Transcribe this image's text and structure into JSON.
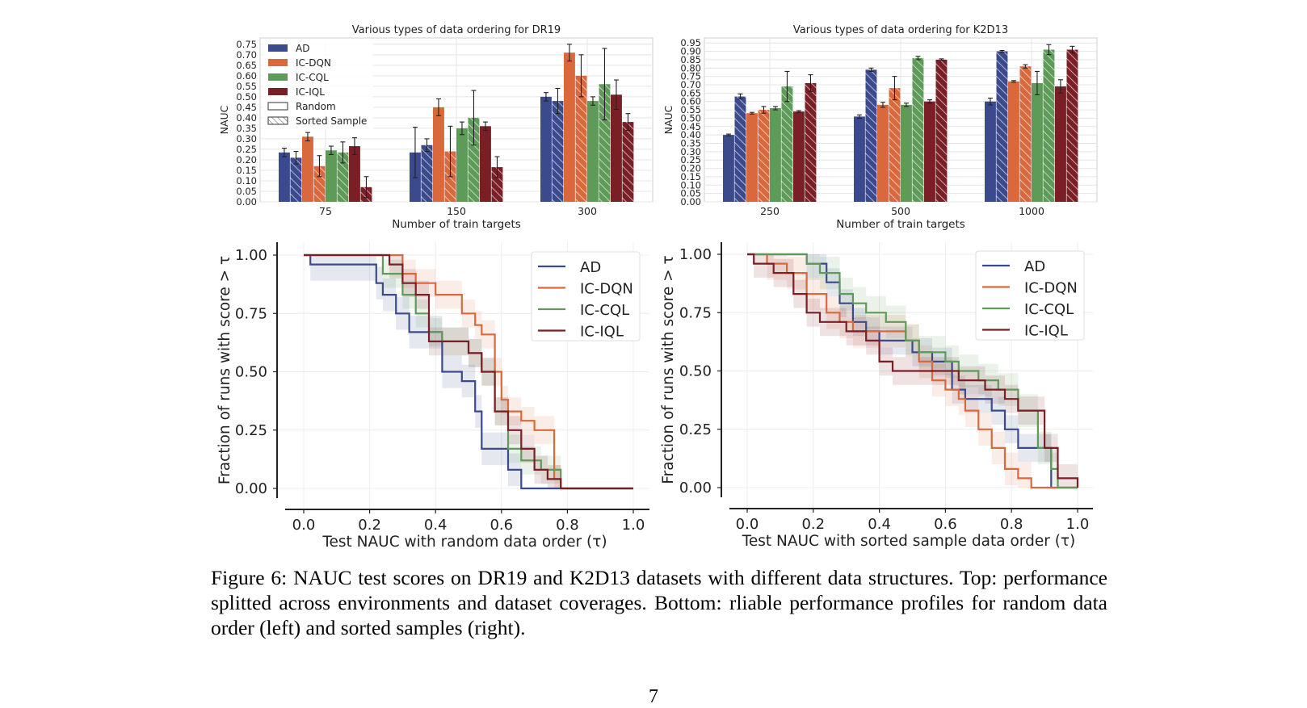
{
  "colors": {
    "AD": "#3b4a8c",
    "IC-DQN": "#d9693c",
    "IC-CQL": "#5e9a58",
    "IC-IQL": "#7a1f26",
    "grid": "#e4e4e4"
  },
  "chart_data": [
    {
      "id": "top-left",
      "type": "bar",
      "title": "Various types of data ordering for DR19",
      "xlabel": "Number of train targets",
      "ylabel": "NAUC",
      "categories": [
        "75",
        "150",
        "300"
      ],
      "ylim": [
        0,
        0.78
      ],
      "yticks": [
        "0.00",
        "0.05",
        "0.10",
        "0.15",
        "0.20",
        "0.25",
        "0.30",
        "0.35",
        "0.40",
        "0.45",
        "0.50",
        "0.55",
        "0.60",
        "0.65",
        "0.70",
        "0.75"
      ],
      "legend": [
        "AD",
        "IC-DQN",
        "IC-CQL",
        "IC-IQL",
        "Random",
        "Sorted Sample"
      ],
      "legend_position": "top-left",
      "series": [
        {
          "name": "AD",
          "order": "Random",
          "values": [
            0.235,
            0.235,
            0.5
          ],
          "err": [
            0.02,
            0.12,
            0.02
          ]
        },
        {
          "name": "AD",
          "order": "Sorted Sample",
          "values": [
            0.21,
            0.27,
            0.48
          ],
          "err": [
            0.03,
            0.03,
            0.06
          ]
        },
        {
          "name": "IC-DQN",
          "order": "Random",
          "values": [
            0.31,
            0.45,
            0.71
          ],
          "err": [
            0.02,
            0.04,
            0.04
          ]
        },
        {
          "name": "IC-DQN",
          "order": "Sorted Sample",
          "values": [
            0.17,
            0.24,
            0.6
          ],
          "err": [
            0.05,
            0.12,
            0.1
          ]
        },
        {
          "name": "IC-CQL",
          "order": "Random",
          "values": [
            0.245,
            0.35,
            0.48
          ],
          "err": [
            0.02,
            0.03,
            0.02
          ]
        },
        {
          "name": "IC-CQL",
          "order": "Sorted Sample",
          "values": [
            0.235,
            0.4,
            0.56
          ],
          "err": [
            0.05,
            0.13,
            0.17
          ]
        },
        {
          "name": "IC-IQL",
          "order": "Random",
          "values": [
            0.265,
            0.36,
            0.51
          ],
          "err": [
            0.04,
            0.02,
            0.07
          ]
        },
        {
          "name": "IC-IQL",
          "order": "Sorted Sample",
          "values": [
            0.07,
            0.165,
            0.38
          ],
          "err": [
            0.05,
            0.05,
            0.04
          ]
        }
      ]
    },
    {
      "id": "top-right",
      "type": "bar",
      "title": "Various types of data ordering for K2D13",
      "xlabel": "Number of train targets",
      "ylabel": "NAUC",
      "categories": [
        "250",
        "500",
        "1000"
      ],
      "ylim": [
        0,
        0.98
      ],
      "yticks": [
        "0.00",
        "0.05",
        "0.10",
        "0.15",
        "0.20",
        "0.25",
        "0.30",
        "0.35",
        "0.40",
        "0.45",
        "0.50",
        "0.55",
        "0.60",
        "0.65",
        "0.70",
        "0.75",
        "0.80",
        "0.85",
        "0.90",
        "0.95"
      ],
      "series": [
        {
          "name": "AD",
          "order": "Random",
          "values": [
            0.4,
            0.51,
            0.6
          ],
          "err": [
            0.005,
            0.01,
            0.02
          ]
        },
        {
          "name": "AD",
          "order": "Sorted Sample",
          "values": [
            0.63,
            0.79,
            0.9
          ],
          "err": [
            0.015,
            0.01,
            0.005
          ]
        },
        {
          "name": "IC-DQN",
          "order": "Random",
          "values": [
            0.53,
            0.58,
            0.72
          ],
          "err": [
            0.005,
            0.015,
            0.005
          ]
        },
        {
          "name": "IC-DQN",
          "order": "Sorted Sample",
          "values": [
            0.55,
            0.68,
            0.81
          ],
          "err": [
            0.02,
            0.07,
            0.01
          ]
        },
        {
          "name": "IC-CQL",
          "order": "Random",
          "values": [
            0.56,
            0.58,
            0.71
          ],
          "err": [
            0.01,
            0.01,
            0.07
          ]
        },
        {
          "name": "IC-CQL",
          "order": "Sorted Sample",
          "values": [
            0.69,
            0.86,
            0.91
          ],
          "err": [
            0.09,
            0.01,
            0.03
          ]
        },
        {
          "name": "IC-IQL",
          "order": "Random",
          "values": [
            0.54,
            0.6,
            0.69
          ],
          "err": [
            0.005,
            0.01,
            0.04
          ]
        },
        {
          "name": "IC-IQL",
          "order": "Sorted Sample",
          "values": [
            0.71,
            0.85,
            0.91
          ],
          "err": [
            0.05,
            0.005,
            0.02
          ]
        }
      ]
    },
    {
      "id": "bottom-left",
      "type": "line",
      "xlabel": "Test NAUC with random data order (τ)",
      "ylabel": "Fraction of runs with score > τ",
      "xlim": [
        0,
        1
      ],
      "ylim": [
        0,
        1
      ],
      "xticks": [
        "0.0",
        "0.2",
        "0.4",
        "0.6",
        "0.8",
        "1.0"
      ],
      "yticks": [
        "0.00",
        "0.25",
        "0.50",
        "0.75",
        "1.00"
      ],
      "legend": [
        "AD",
        "IC-DQN",
        "IC-CQL",
        "IC-IQL"
      ],
      "legend_position": "top-right",
      "series": [
        {
          "name": "AD",
          "x": [
            0.0,
            0.02,
            0.2,
            0.22,
            0.24,
            0.28,
            0.32,
            0.4,
            0.42,
            0.46,
            0.48,
            0.52,
            0.54,
            0.58,
            0.62,
            0.66,
            0.7,
            1.0
          ],
          "y": [
            1.0,
            0.96,
            0.96,
            0.88,
            0.83,
            0.75,
            0.67,
            0.67,
            0.5,
            0.5,
            0.46,
            0.33,
            0.17,
            0.17,
            0.08,
            0.0,
            0.0,
            0.0
          ],
          "band": 0.07
        },
        {
          "name": "IC-DQN",
          "x": [
            0.0,
            0.2,
            0.26,
            0.3,
            0.34,
            0.4,
            0.44,
            0.48,
            0.52,
            0.54,
            0.58,
            0.6,
            0.62,
            0.66,
            0.7,
            0.74,
            0.76,
            0.78,
            1.0
          ],
          "y": [
            1.0,
            1.0,
            1.0,
            0.92,
            0.88,
            0.83,
            0.83,
            0.75,
            0.7,
            0.66,
            0.5,
            0.38,
            0.33,
            0.29,
            0.25,
            0.25,
            0.04,
            0.0,
            0.0
          ],
          "band": 0.06
        },
        {
          "name": "IC-CQL",
          "x": [
            0.0,
            0.2,
            0.24,
            0.3,
            0.34,
            0.38,
            0.42,
            0.46,
            0.5,
            0.54,
            0.58,
            0.62,
            0.66,
            0.72,
            0.76,
            0.78,
            1.0
          ],
          "y": [
            1.0,
            1.0,
            0.92,
            0.83,
            0.75,
            0.67,
            0.63,
            0.63,
            0.58,
            0.5,
            0.33,
            0.17,
            0.12,
            0.08,
            0.08,
            0.0,
            0.0
          ],
          "band": 0.06
        },
        {
          "name": "IC-IQL",
          "x": [
            0.0,
            0.2,
            0.26,
            0.3,
            0.34,
            0.38,
            0.46,
            0.5,
            0.54,
            0.58,
            0.62,
            0.66,
            0.7,
            0.74,
            0.78,
            1.0
          ],
          "y": [
            1.0,
            1.0,
            0.96,
            0.88,
            0.83,
            0.63,
            0.63,
            0.58,
            0.5,
            0.33,
            0.25,
            0.17,
            0.08,
            0.04,
            0.0,
            0.0
          ],
          "band": 0.06
        }
      ]
    },
    {
      "id": "bottom-right",
      "type": "line",
      "xlabel": "Test NAUC with sorted sample data order (τ)",
      "ylabel": "Fraction of runs with score > τ",
      "xlim": [
        0,
        1
      ],
      "ylim": [
        0,
        1
      ],
      "xticks": [
        "0.0",
        "0.2",
        "0.4",
        "0.6",
        "0.8",
        "1.0"
      ],
      "yticks": [
        "0.00",
        "0.25",
        "0.50",
        "0.75",
        "1.00"
      ],
      "legend": [
        "AD",
        "IC-DQN",
        "IC-CQL",
        "IC-IQL"
      ],
      "legend_position": "top-right",
      "series": [
        {
          "name": "AD",
          "x": [
            0.0,
            0.14,
            0.18,
            0.24,
            0.28,
            0.32,
            0.36,
            0.4,
            0.44,
            0.5,
            0.56,
            0.6,
            0.62,
            0.66,
            0.74,
            0.78,
            0.82,
            0.88,
            0.92,
            1.0
          ],
          "y": [
            1.0,
            1.0,
            0.96,
            0.88,
            0.79,
            0.71,
            0.67,
            0.63,
            0.63,
            0.58,
            0.54,
            0.54,
            0.42,
            0.38,
            0.33,
            0.25,
            0.17,
            0.17,
            0.0,
            0.0
          ],
          "band": 0.06
        },
        {
          "name": "IC-DQN",
          "x": [
            0.0,
            0.06,
            0.12,
            0.18,
            0.24,
            0.28,
            0.32,
            0.36,
            0.4,
            0.48,
            0.52,
            0.56,
            0.6,
            0.64,
            0.66,
            0.7,
            0.74,
            0.78,
            0.82,
            0.86,
            1.0
          ],
          "y": [
            1.0,
            0.96,
            0.92,
            0.83,
            0.75,
            0.71,
            0.67,
            0.67,
            0.67,
            0.63,
            0.54,
            0.46,
            0.42,
            0.38,
            0.33,
            0.25,
            0.17,
            0.08,
            0.04,
            0.0,
            0.0
          ],
          "band": 0.07
        },
        {
          "name": "IC-CQL",
          "x": [
            0.0,
            0.14,
            0.18,
            0.22,
            0.28,
            0.32,
            0.36,
            0.42,
            0.48,
            0.52,
            0.58,
            0.6,
            0.64,
            0.7,
            0.76,
            0.82,
            0.88,
            0.92,
            0.94,
            1.0
          ],
          "y": [
            1.0,
            1.0,
            0.96,
            0.92,
            0.83,
            0.79,
            0.75,
            0.71,
            0.63,
            0.58,
            0.58,
            0.54,
            0.5,
            0.46,
            0.42,
            0.33,
            0.17,
            0.08,
            0.0,
            0.0
          ],
          "band": 0.07
        },
        {
          "name": "IC-IQL",
          "x": [
            0.0,
            0.02,
            0.08,
            0.14,
            0.18,
            0.22,
            0.3,
            0.36,
            0.4,
            0.44,
            0.6,
            0.64,
            0.72,
            0.78,
            0.82,
            0.86,
            0.9,
            0.94,
            1.0
          ],
          "y": [
            1.0,
            0.96,
            0.92,
            0.83,
            0.75,
            0.71,
            0.67,
            0.63,
            0.54,
            0.5,
            0.5,
            0.46,
            0.42,
            0.38,
            0.33,
            0.33,
            0.17,
            0.04,
            0.0
          ],
          "band": 0.06
        }
      ]
    }
  ],
  "caption": {
    "text": "Figure 6:  NAUC test scores on DR19 and K2D13 datasets with different data structures.  Top: performance splitted across environments and dataset coverages.  Bottom: rliable performance profiles for random data order (left) and sorted samples (right)."
  },
  "page_number": "7"
}
